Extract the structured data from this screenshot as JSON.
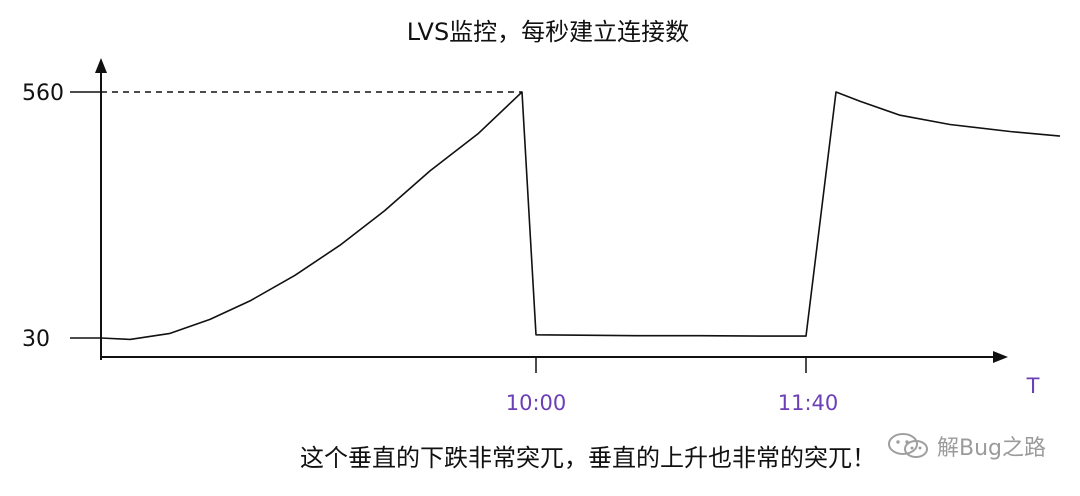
{
  "chart_data": {
    "type": "line",
    "title": "LVS监控，每秒建立连接数",
    "caption": "这个垂直的下跌非常突兀，垂直的上升也非常的突兀！",
    "xlabel": "T",
    "ylabel": "",
    "yticks": [
      30,
      560
    ],
    "xticks": [
      "10:00",
      "11:40"
    ],
    "ylim": [
      30,
      560
    ],
    "grid": false,
    "reference_line": {
      "y": 560,
      "style": "dashed"
    },
    "series": [
      {
        "values": [
          30,
          27,
          40,
          70,
          110,
          165,
          230,
          305,
          390,
          470,
          560,
          37,
          36,
          35,
          35,
          34,
          34,
          560,
          540,
          510,
          490,
          475,
          465
        ]
      }
    ],
    "colors": {
      "axis": "#111111",
      "line": "#111111",
      "tick_time_label": "#6b3fb6"
    }
  },
  "watermark": {
    "text": "解Bug之路",
    "icon": "wechat-logo-icon"
  }
}
